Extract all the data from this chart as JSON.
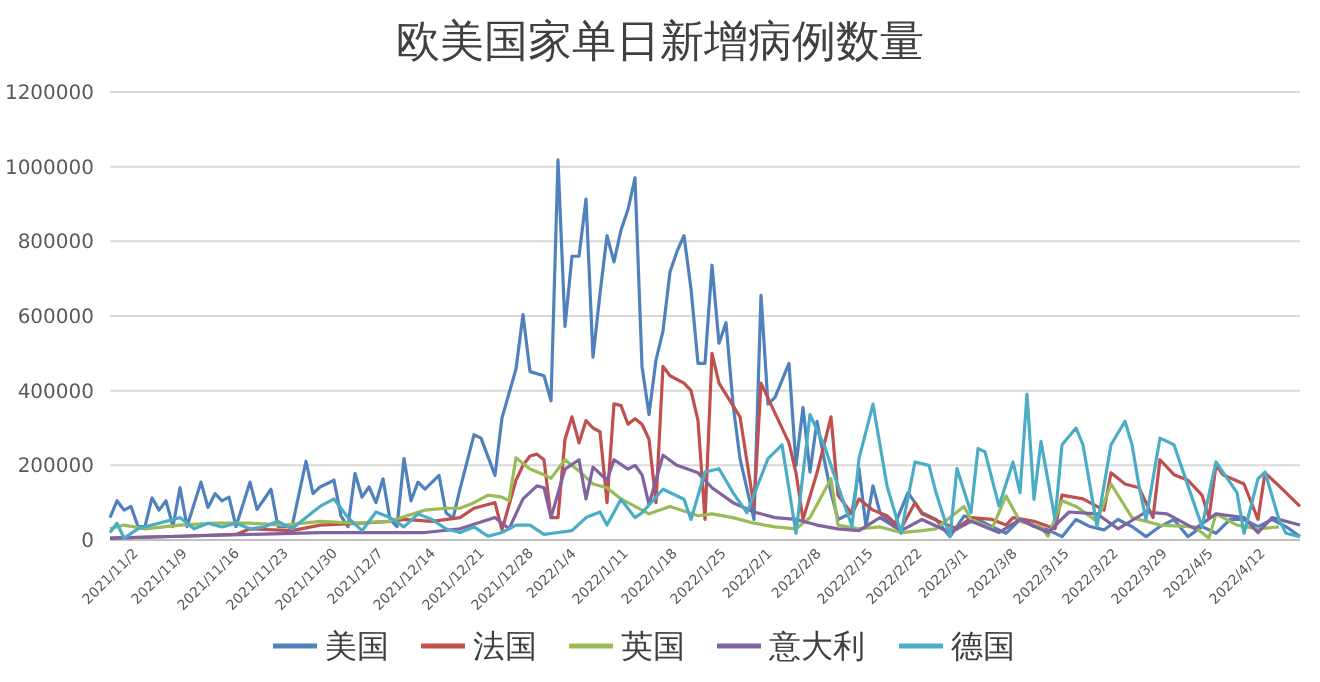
{
  "chart_data": {
    "type": "line",
    "title": "欧美国家单日新增病例数量",
    "legend": "bottom",
    "grid": "y",
    "xlim": [
      "2021-11-02",
      "2022-04-21"
    ],
    "ylim": [
      0,
      1200000
    ],
    "yticks": [
      0,
      200000,
      400000,
      600000,
      800000,
      1000000,
      1200000
    ],
    "xticks": [
      {
        "value": "2021-11-02",
        "label": "2021/11/2"
      },
      {
        "value": "2021-11-09",
        "label": "2021/11/9"
      },
      {
        "value": "2021-11-16",
        "label": "2021/11/16"
      },
      {
        "value": "2021-11-23",
        "label": "2021/11/23"
      },
      {
        "value": "2021-11-30",
        "label": "2021/11/30"
      },
      {
        "value": "2021-12-07",
        "label": "2021/12/7"
      },
      {
        "value": "2021-12-14",
        "label": "2021/12/14"
      },
      {
        "value": "2021-12-21",
        "label": "2021/12/21"
      },
      {
        "value": "2021-12-28",
        "label": "2021/12/28"
      },
      {
        "value": "2022-01-04",
        "label": "2022/1/4"
      },
      {
        "value": "2022-01-11",
        "label": "2022/1/11"
      },
      {
        "value": "2022-01-18",
        "label": "2022/1/18"
      },
      {
        "value": "2022-01-25",
        "label": "2022/1/25"
      },
      {
        "value": "2022-02-01",
        "label": "2022/2/1"
      },
      {
        "value": "2022-02-08",
        "label": "2022/2/8"
      },
      {
        "value": "2022-02-15",
        "label": "2022/2/15"
      },
      {
        "value": "2022-02-22",
        "label": "2022/2/22"
      },
      {
        "value": "2022-03-01",
        "label": "2022/3/1"
      },
      {
        "value": "2022-03-08",
        "label": "2022/3/8"
      },
      {
        "value": "2022-03-15",
        "label": "2022/3/15"
      },
      {
        "value": "2022-03-22",
        "label": "2022/3/22"
      },
      {
        "value": "2022-03-29",
        "label": "2022/3/29"
      },
      {
        "value": "2022-04-05",
        "label": "2022/4/5"
      },
      {
        "value": "2022-04-12",
        "label": "2022/4/12"
      }
    ],
    "series": [
      {
        "name": "美国",
        "color": "#4f81bd",
        "x": [
          "2021-11-02",
          "2021-11-03",
          "2021-11-04",
          "2021-11-05",
          "2021-11-06",
          "2021-11-07",
          "2021-11-08",
          "2021-11-09",
          "2021-11-10",
          "2021-11-11",
          "2021-11-12",
          "2021-11-13",
          "2021-11-15",
          "2021-11-16",
          "2021-11-17",
          "2021-11-18",
          "2021-11-19",
          "2021-11-20",
          "2021-11-22",
          "2021-11-23",
          "2021-11-25",
          "2021-11-26",
          "2021-11-28",
          "2021-11-30",
          "2021-12-01",
          "2021-12-02",
          "2021-12-04",
          "2021-12-05",
          "2021-12-06",
          "2021-12-07",
          "2021-12-08",
          "2021-12-09",
          "2021-12-10",
          "2021-12-11",
          "2021-12-12",
          "2021-12-13",
          "2021-12-14",
          "2021-12-15",
          "2021-12-16",
          "2021-12-17",
          "2021-12-19",
          "2021-12-20",
          "2021-12-21",
          "2021-12-22",
          "2021-12-24",
          "2021-12-25",
          "2021-12-27",
          "2021-12-28",
          "2021-12-30",
          "2021-12-31",
          "2022-01-01",
          "2022-01-03",
          "2022-01-04",
          "2022-01-05",
          "2022-01-06",
          "2022-01-07",
          "2022-01-08",
          "2022-01-09",
          "2022-01-10",
          "2022-01-11",
          "2022-01-12",
          "2022-01-13",
          "2022-01-14",
          "2022-01-15",
          "2022-01-16",
          "2022-01-17",
          "2022-01-18",
          "2022-01-19",
          "2022-01-20",
          "2022-01-21",
          "2022-01-22",
          "2022-01-23",
          "2022-01-24",
          "2022-01-25",
          "2022-01-26",
          "2022-01-27",
          "2022-01-28",
          "2022-01-29",
          "2022-01-30",
          "2022-01-31",
          "2022-02-02",
          "2022-02-03",
          "2022-02-04",
          "2022-02-05",
          "2022-02-07",
          "2022-02-08",
          "2022-02-09",
          "2022-02-10",
          "2022-02-11",
          "2022-02-12",
          "2022-02-13",
          "2022-02-14",
          "2022-02-16",
          "2022-02-17",
          "2022-02-18",
          "2022-02-19",
          "2022-02-20",
          "2022-02-22",
          "2022-02-24",
          "2022-02-26",
          "2022-02-28",
          "2022-03-02",
          "2022-03-04",
          "2022-03-06",
          "2022-03-08",
          "2022-03-10",
          "2022-03-12",
          "2022-03-14",
          "2022-03-16",
          "2022-03-18",
          "2022-03-20",
          "2022-03-22",
          "2022-03-24",
          "2022-03-26",
          "2022-03-28",
          "2022-03-30",
          "2022-04-01",
          "2022-04-03",
          "2022-04-05",
          "2022-04-07",
          "2022-04-09",
          "2022-04-11",
          "2022-04-13",
          "2022-04-15",
          "2022-04-17",
          "2022-04-19",
          "2022-04-21"
        ],
        "values": [
          60000,
          105000,
          80000,
          90000,
          36000,
          36000,
          113000,
          80000,
          105000,
          36000,
          140000,
          36000,
          155000,
          87000,
          124000,
          105000,
          115000,
          36000,
          155000,
          82000,
          136000,
          36000,
          36000,
          211000,
          124000,
          142000,
          160000,
          64000,
          36000,
          178000,
          115000,
          142000,
          100000,
          164000,
          55000,
          36000,
          218000,
          105000,
          155000,
          136000,
          173000,
          73000,
          58000,
          136000,
          282000,
          273000,
          173000,
          327000,
          458000,
          604000,
          451000,
          440000,
          373000,
          1018000,
          572000,
          760000,
          760000,
          913000,
          490000,
          660000,
          815000,
          745000,
          830000,
          885000,
          970000,
          465000,
          336000,
          482000,
          560000,
          718000,
          773000,
          815000,
          673000,
          473000,
          473000,
          736000,
          527000,
          582000,
          364000,
          218000,
          55000,
          655000,
          364000,
          382000,
          473000,
          200000,
          355000,
          182000,
          318000,
          218000,
          127000,
          55000,
          73000,
          191000,
          36000,
          145000,
          73000,
          36000,
          127000,
          73000,
          55000,
          9000,
          64000,
          55000,
          36000,
          18000,
          55000,
          36000,
          27000,
          9000,
          55000,
          36000,
          27000,
          55000,
          36000,
          9000,
          36000,
          55000,
          9000,
          36000,
          18000,
          55000,
          55000,
          36000,
          55000,
          36000,
          9000
        ]
      },
      {
        "name": "法国",
        "color": "#c0504d",
        "x": [
          "2021-11-02",
          "2021-11-12",
          "2021-11-20",
          "2021-11-22",
          "2021-11-28",
          "2021-12-02",
          "2021-12-08",
          "2021-12-12",
          "2021-12-14",
          "2021-12-18",
          "2021-12-22",
          "2021-12-24",
          "2021-12-26",
          "2021-12-27",
          "2021-12-28",
          "2021-12-30",
          "2021-12-31",
          "2022-01-01",
          "2022-01-02",
          "2022-01-03",
          "2022-01-04",
          "2022-01-05",
          "2022-01-06",
          "2022-01-07",
          "2022-01-08",
          "2022-01-09",
          "2022-01-10",
          "2022-01-11",
          "2022-01-12",
          "2022-01-13",
          "2022-01-14",
          "2022-01-15",
          "2022-01-16",
          "2022-01-17",
          "2022-01-18",
          "2022-01-19",
          "2022-01-20",
          "2022-01-21",
          "2022-01-23",
          "2022-01-24",
          "2022-01-25",
          "2022-01-26",
          "2022-01-27",
          "2022-01-28",
          "2022-01-30",
          "2022-01-31",
          "2022-02-02",
          "2022-02-03",
          "2022-02-05",
          "2022-02-07",
          "2022-02-08",
          "2022-02-09",
          "2022-02-11",
          "2022-02-13",
          "2022-02-14",
          "2022-02-16",
          "2022-02-17",
          "2022-02-19",
          "2022-02-21",
          "2022-02-23",
          "2022-02-25",
          "2022-02-26",
          "2022-03-01",
          "2022-03-03",
          "2022-03-05",
          "2022-03-08",
          "2022-03-10",
          "2022-03-11",
          "2022-03-14",
          "2022-03-17",
          "2022-03-18",
          "2022-03-21",
          "2022-03-24",
          "2022-03-25",
          "2022-03-27",
          "2022-03-29",
          "2022-03-31",
          "2022-04-01",
          "2022-04-03",
          "2022-04-05",
          "2022-04-07",
          "2022-04-08",
          "2022-04-09",
          "2022-04-10",
          "2022-04-13",
          "2022-04-15",
          "2022-04-16",
          "2022-04-18",
          "2022-04-21"
        ],
        "values": [
          5000,
          10000,
          15000,
          30000,
          25000,
          40000,
          45000,
          50000,
          55000,
          50000,
          60000,
          85000,
          95000,
          100000,
          27000,
          160000,
          200000,
          225000,
          230000,
          215000,
          60000,
          60000,
          270000,
          330000,
          260000,
          320000,
          300000,
          290000,
          100000,
          365000,
          360000,
          310000,
          325000,
          310000,
          270000,
          100000,
          465000,
          440000,
          420000,
          400000,
          320000,
          55000,
          500000,
          420000,
          360000,
          330000,
          90000,
          420000,
          340000,
          260000,
          180000,
          55000,
          180000,
          330000,
          120000,
          70000,
          110000,
          80000,
          65000,
          30000,
          100000,
          70000,
          45000,
          30000,
          60000,
          55000,
          40000,
          60000,
          50000,
          30000,
          120000,
          110000,
          80000,
          180000,
          150000,
          140000,
          60000,
          215000,
          175000,
          160000,
          120000,
          60000,
          200000,
          175000,
          150000,
          55000,
          180000,
          145000,
          90000
        ]
      },
      {
        "name": "英国",
        "color": "#9bbb59",
        "x": [
          "2021-11-02",
          "2021-11-04",
          "2021-11-07",
          "2021-11-12",
          "2021-11-17",
          "2021-11-22",
          "2021-11-27",
          "2021-12-02",
          "2021-12-07",
          "2021-12-12",
          "2021-12-17",
          "2021-12-20",
          "2021-12-22",
          "2021-12-24",
          "2021-12-26",
          "2021-12-28",
          "2021-12-29",
          "2021-12-30",
          "2022-01-01",
          "2022-01-03",
          "2022-01-04",
          "2022-01-06",
          "2022-01-08",
          "2022-01-10",
          "2022-01-12",
          "2022-01-14",
          "2022-01-16",
          "2022-01-18",
          "2022-01-21",
          "2022-01-25",
          "2022-01-27",
          "2022-01-30",
          "2022-02-02",
          "2022-02-05",
          "2022-02-08",
          "2022-02-10",
          "2022-02-13",
          "2022-02-14",
          "2022-02-17",
          "2022-02-20",
          "2022-02-23",
          "2022-02-26",
          "2022-02-28",
          "2022-03-04",
          "2022-03-05",
          "2022-03-08",
          "2022-03-10",
          "2022-03-12",
          "2022-03-15",
          "2022-03-16",
          "2022-03-18",
          "2022-03-20",
          "2022-03-23",
          "2022-03-25",
          "2022-03-28",
          "2022-04-01",
          "2022-04-06",
          "2022-04-08",
          "2022-04-09",
          "2022-04-12",
          "2022-04-15",
          "2022-04-18"
        ],
        "values": [
          30000,
          40000,
          30000,
          40000,
          45000,
          45000,
          40000,
          50000,
          45000,
          50000,
          80000,
          85000,
          85000,
          100000,
          120000,
          115000,
          105000,
          220000,
          190000,
          175000,
          165000,
          215000,
          185000,
          150000,
          140000,
          110000,
          90000,
          70000,
          90000,
          65000,
          70000,
          60000,
          45000,
          35000,
          30000,
          60000,
          164000,
          40000,
          30000,
          35000,
          20000,
          25000,
          30000,
          90000,
          55000,
          30000,
          118000,
          50000,
          35000,
          10000,
          105000,
          90000,
          50000,
          150000,
          60000,
          40000,
          35000,
          5000,
          70000,
          40000,
          30000,
          35000
        ]
      },
      {
        "name": "意大利",
        "color": "#8064a2",
        "x": [
          "2021-11-02",
          "2021-11-12",
          "2021-11-22",
          "2021-12-02",
          "2021-12-12",
          "2021-12-17",
          "2021-12-22",
          "2021-12-27",
          "2021-12-29",
          "2021-12-31",
          "2022-01-02",
          "2022-01-03",
          "2022-01-04",
          "2022-01-06",
          "2022-01-08",
          "2022-01-09",
          "2022-01-10",
          "2022-01-12",
          "2022-01-13",
          "2022-01-15",
          "2022-01-16",
          "2022-01-17",
          "2022-01-18",
          "2022-01-20",
          "2022-01-22",
          "2022-01-25",
          "2022-01-27",
          "2022-01-30",
          "2022-02-02",
          "2022-02-05",
          "2022-02-08",
          "2022-02-11",
          "2022-02-14",
          "2022-02-17",
          "2022-02-20",
          "2022-02-23",
          "2022-02-26",
          "2022-03-02",
          "2022-03-05",
          "2022-03-09",
          "2022-03-12",
          "2022-03-16",
          "2022-03-19",
          "2022-03-23",
          "2022-03-26",
          "2022-03-30",
          "2022-04-02",
          "2022-04-06",
          "2022-04-09",
          "2022-04-13",
          "2022-04-15",
          "2022-04-17",
          "2022-04-21"
        ],
        "values": [
          5000,
          10000,
          15000,
          20000,
          20000,
          20000,
          30000,
          60000,
          30000,
          110000,
          145000,
          140000,
          60000,
          190000,
          215000,
          110000,
          195000,
          160000,
          215000,
          190000,
          200000,
          175000,
          95000,
          227000,
          200000,
          180000,
          140000,
          100000,
          75000,
          60000,
          55000,
          40000,
          30000,
          25000,
          60000,
          25000,
          55000,
          20000,
          50000,
          20000,
          55000,
          20000,
          75000,
          70000,
          30000,
          75000,
          70000,
          30000,
          70000,
          60000,
          20000,
          60000,
          40000
        ]
      },
      {
        "name": "德国",
        "color": "#4bacc6",
        "x": [
          "2021-11-02",
          "2021-11-03",
          "2021-11-04",
          "2021-11-06",
          "2021-11-08",
          "2021-11-12",
          "2021-11-14",
          "2021-11-16",
          "2021-11-18",
          "2021-11-20",
          "2021-11-22",
          "2021-11-24",
          "2021-11-26",
          "2021-11-28",
          "2021-11-30",
          "2021-12-02",
          "2021-12-04",
          "2021-12-06",
          "2021-12-08",
          "2021-12-10",
          "2021-12-12",
          "2021-12-14",
          "2021-12-16",
          "2021-12-18",
          "2021-12-20",
          "2021-12-22",
          "2021-12-24",
          "2021-12-26",
          "2021-12-28",
          "2021-12-30",
          "2022-01-01",
          "2022-01-03",
          "2022-01-05",
          "2022-01-07",
          "2022-01-09",
          "2022-01-11",
          "2022-01-12",
          "2022-01-14",
          "2022-01-16",
          "2022-01-17",
          "2022-01-20",
          "2022-01-23",
          "2022-01-24",
          "2022-01-26",
          "2022-01-28",
          "2022-01-30",
          "2022-02-01",
          "2022-02-04",
          "2022-02-06",
          "2022-02-08",
          "2022-02-10",
          "2022-02-12",
          "2022-02-14",
          "2022-02-16",
          "2022-02-17",
          "2022-02-19",
          "2022-02-21",
          "2022-02-23",
          "2022-02-25",
          "2022-02-27",
          "2022-02-28",
          "2022-03-02",
          "2022-03-03",
          "2022-03-05",
          "2022-03-06",
          "2022-03-07",
          "2022-03-09",
          "2022-03-11",
          "2022-03-12",
          "2022-03-13",
          "2022-03-14",
          "2022-03-15",
          "2022-03-17",
          "2022-03-18",
          "2022-03-20",
          "2022-03-21",
          "2022-03-23",
          "2022-03-25",
          "2022-03-27",
          "2022-03-28",
          "2022-03-29",
          "2022-03-30",
          "2022-04-01",
          "2022-04-03",
          "2022-04-05",
          "2022-04-07",
          "2022-04-09",
          "2022-04-10",
          "2022-04-12",
          "2022-04-13",
          "2022-04-15",
          "2022-04-16",
          "2022-04-18",
          "2022-04-19",
          "2022-04-21"
        ],
        "values": [
          20000,
          45000,
          5000,
          30000,
          40000,
          60000,
          30000,
          45000,
          35000,
          45000,
          30000,
          35000,
          50000,
          30000,
          60000,
          90000,
          110000,
          60000,
          25000,
          75000,
          60000,
          35000,
          70000,
          55000,
          30000,
          20000,
          35000,
          10000,
          20000,
          40000,
          40000,
          15000,
          20000,
          25000,
          60000,
          75000,
          40000,
          109000,
          60000,
          73000,
          136000,
          109000,
          55000,
          182000,
          191000,
          127000,
          73000,
          218000,
          255000,
          18000,
          336000,
          255000,
          145000,
          36000,
          218000,
          364000,
          145000,
          18000,
          209000,
          200000,
          127000,
          9000,
          191000,
          73000,
          245000,
          236000,
          91000,
          209000,
          127000,
          391000,
          109000,
          264000,
          55000,
          255000,
          300000,
          255000,
          36000,
          255000,
          318000,
          255000,
          145000,
          55000,
          273000,
          255000,
          145000,
          36000,
          209000,
          182000,
          127000,
          18000,
          164000,
          182000,
          55000,
          18000,
          9000
        ]
      }
    ]
  }
}
